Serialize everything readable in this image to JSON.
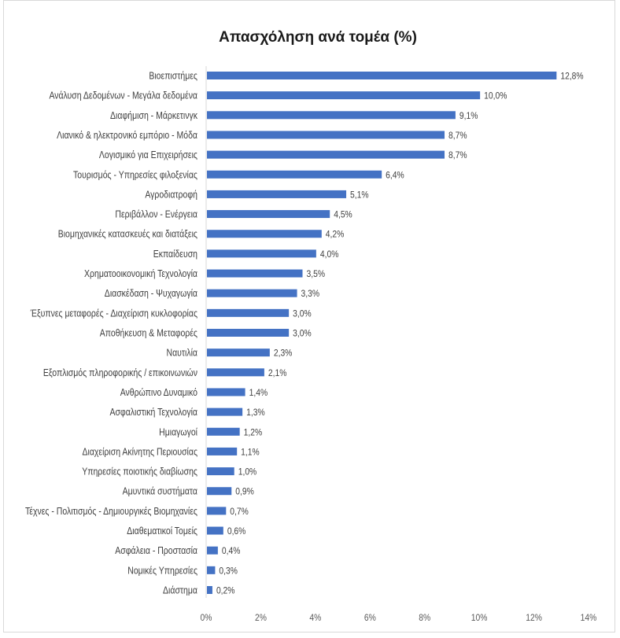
{
  "chart_data": {
    "type": "bar",
    "orientation": "horizontal",
    "title": "Απασχόληση ανά τομέα (%)",
    "xlabel": "",
    "ylabel": "",
    "xlim": [
      0,
      14
    ],
    "x_ticks": [
      "0%",
      "2%",
      "4%",
      "6%",
      "8%",
      "10%",
      "12%",
      "14%"
    ],
    "grid": false,
    "bar_color": "#4472c4",
    "categories": [
      "Βιοεπιστήμες",
      "Ανάλυση Δεδομένων - Μεγάλα δεδομένα",
      "Διαφήμιση - Μάρκετινγκ",
      "Λιανικό & ηλεκτρονικό εμπόριο - Μόδα",
      "Λογισμικό για Επιχειρήσεις",
      "Τουρισμός - Υπηρεσίες φιλοξενίας",
      "Αγροδιατροφή",
      "Περιβάλλον - Ενέργεια",
      "Βιομηχανικές κατασκευές και διατάξεις",
      "Εκπαίδευση",
      "Χρηματοοικονομική Τεχνολογία",
      "Διασκέδαση - Ψυχαγωγία",
      "Έξυπνες μεταφορές - Διαχείριση κυκλοφορίας",
      "Αποθήκευση & Μεταφορές",
      "Ναυτιλία",
      "Εξοπλισμός πληροφορικής / επικοινωνιών",
      "Ανθρώπινο Δυναμικό",
      "Ασφαλιστική Τεχνολογία",
      "Ημιαγωγοί",
      "Διαχείριση Ακίνητης Περιουσίας",
      "Υπηρεσίες ποιοτικής διαβίωσης",
      "Αμυντικά συστήματα",
      "Τέχνες - Πολιτισμός - Δημιουργικές Βιομηχανίες",
      "Διαθεματικοί Τομείς",
      "Ασφάλεια - Προστασία",
      "Νομικές Υπηρεσίες",
      "Διάστημα"
    ],
    "values": [
      12.8,
      10.0,
      9.1,
      8.7,
      8.7,
      6.4,
      5.1,
      4.5,
      4.2,
      4.0,
      3.5,
      3.3,
      3.0,
      3.0,
      2.3,
      2.1,
      1.4,
      1.3,
      1.2,
      1.1,
      1.0,
      0.9,
      0.7,
      0.6,
      0.4,
      0.3,
      0.2
    ],
    "data_labels": [
      "12,8%",
      "10,0%",
      "9,1%",
      "8,7%",
      "8,7%",
      "6,4%",
      "5,1%",
      "4,5%",
      "4,2%",
      "4,0%",
      "3,5%",
      "3,3%",
      "3,0%",
      "3,0%",
      "2,3%",
      "2,1%",
      "1,4%",
      "1,3%",
      "1,2%",
      "1,1%",
      "1,0%",
      "0,9%",
      "0,7%",
      "0,6%",
      "0,4%",
      "0,3%",
      "0,2%"
    ]
  }
}
